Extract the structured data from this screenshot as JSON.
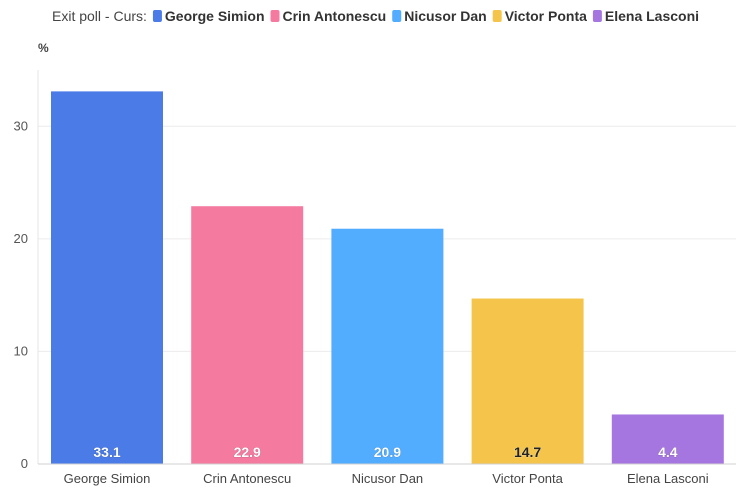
{
  "legend": {
    "title": "Exit poll - Curs:"
  },
  "chart_data": {
    "type": "bar",
    "title": "",
    "xlabel": "",
    "ylabel": "%",
    "ylim": [
      0,
      35
    ],
    "yticks": [
      0,
      10,
      20,
      30
    ],
    "grid": true,
    "legend_position": "top-left",
    "categories": [
      "George Simion",
      "Crin Antonescu",
      "Nicusor Dan",
      "Victor Ponta",
      "Elena Lasconi"
    ],
    "values": [
      33.1,
      22.9,
      20.9,
      14.7,
      4.4
    ],
    "data_labels": [
      "33.1",
      "22.9",
      "20.9",
      "14.7",
      "4.4"
    ],
    "colors": [
      "#4a7be6",
      "#f47aa0",
      "#52acff",
      "#f5c54b",
      "#a676e0"
    ],
    "label_colors": [
      "#ffffff",
      "#ffffff",
      "#ffffff",
      "#222222",
      "#ffffff"
    ]
  }
}
